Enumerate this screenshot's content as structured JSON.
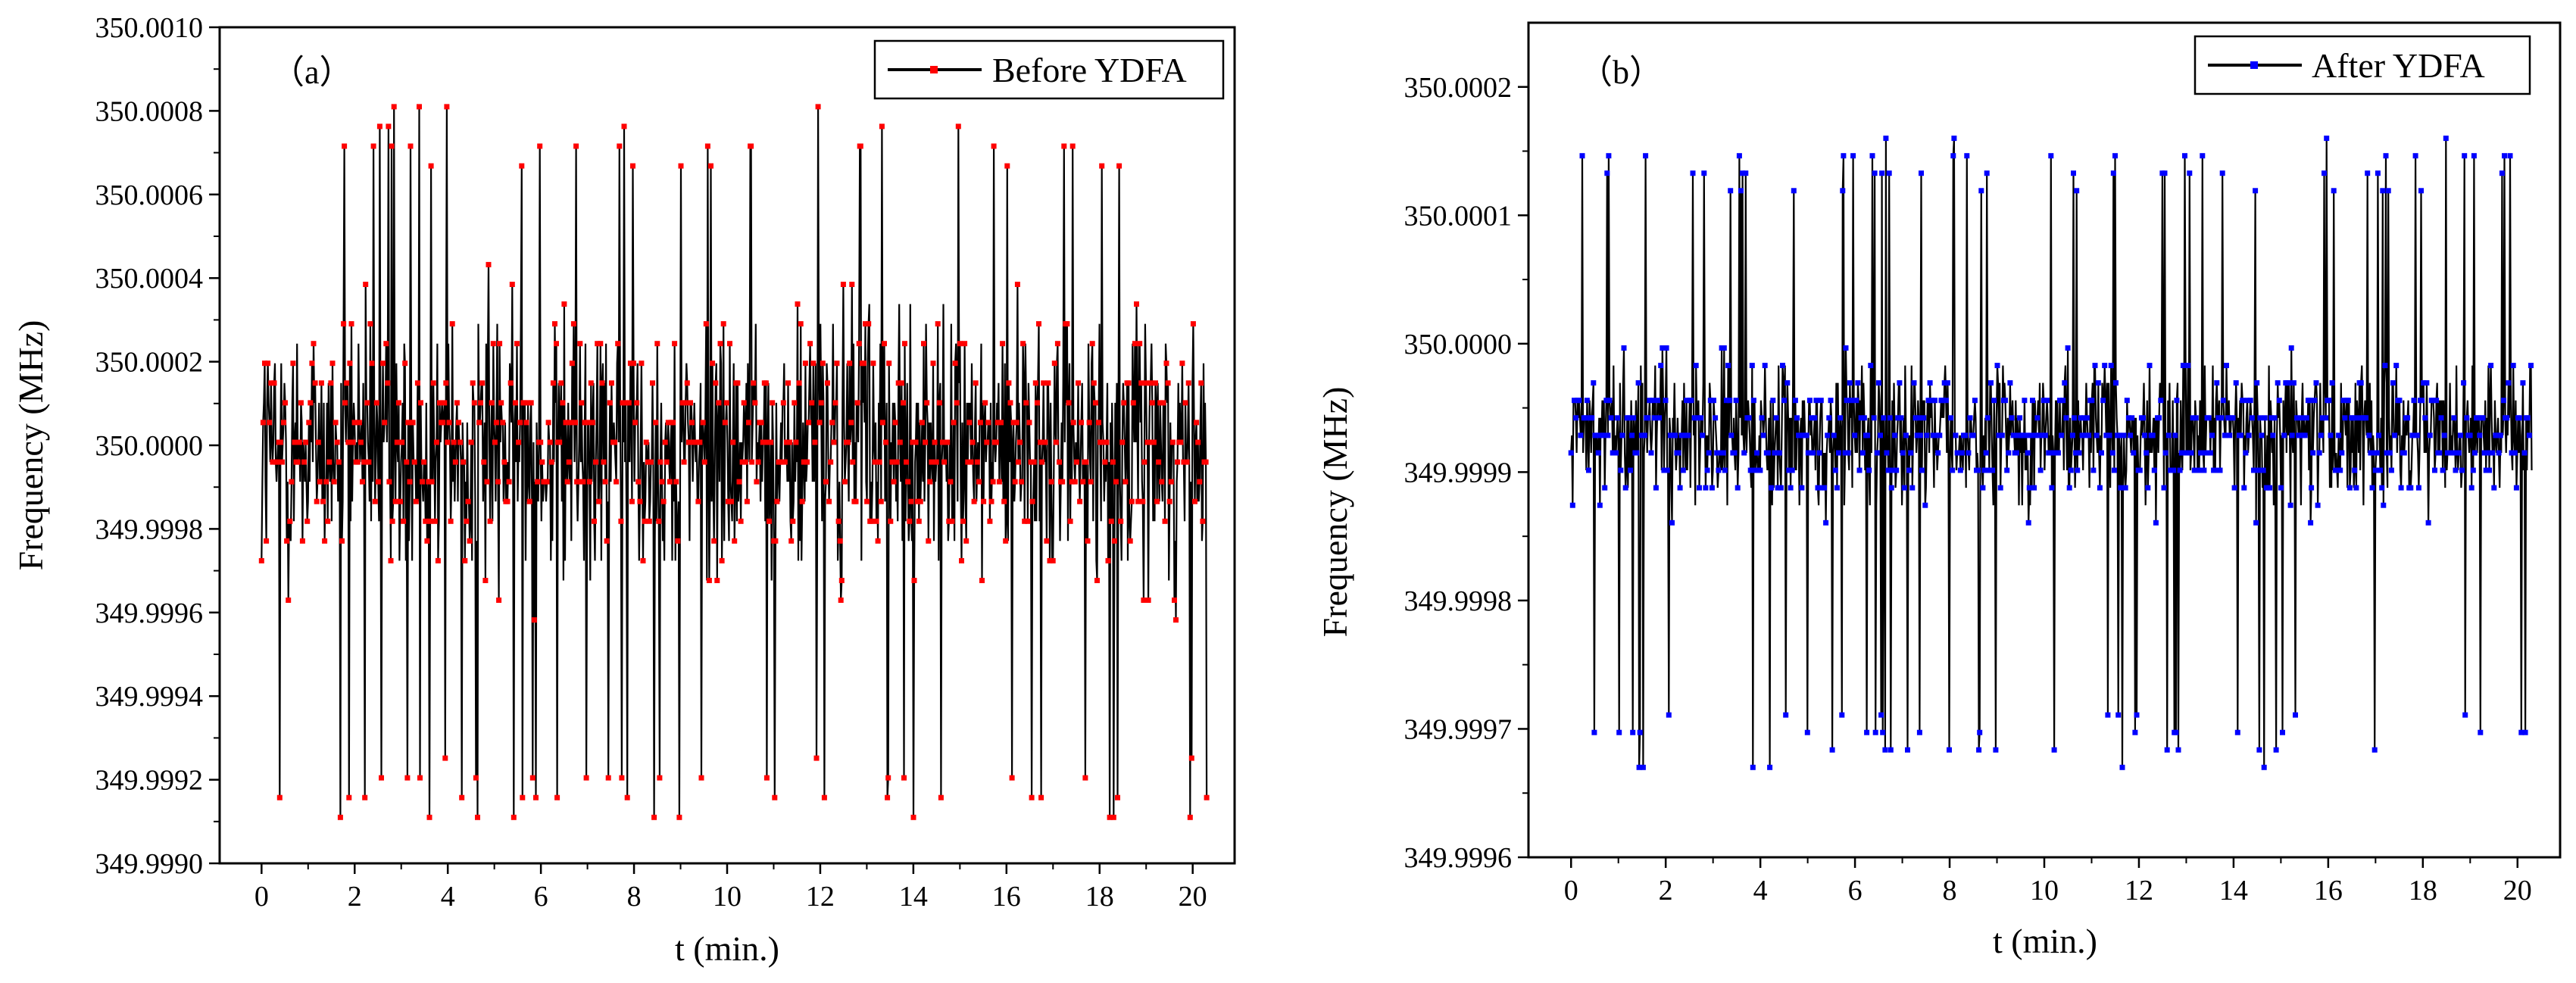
{
  "chart_data": [
    {
      "type": "line",
      "panel_label": "（a）",
      "series": [
        {
          "name": "Before YDFA",
          "line_color": "#000000",
          "marker_color": "#ff0000",
          "center": 350.0,
          "noise_typical": 0.00034,
          "max_value": 350.00081,
          "min_value": 349.99911,
          "n_points": 1200
        }
      ],
      "xlabel": "t (min.)",
      "ylabel": "Frequency (MHz)",
      "xlim": [
        -0.9,
        20.9
      ],
      "ylim": [
        349.999,
        350.001
      ],
      "xticks": [
        0,
        2,
        4,
        6,
        8,
        10,
        12,
        14,
        16,
        18,
        20
      ],
      "xtick_labels": [
        "0",
        "2",
        "4",
        "6",
        "8",
        "10",
        "12",
        "14",
        "16",
        "18",
        "20"
      ],
      "yticks": [
        349.999,
        349.9992,
        349.9994,
        349.9996,
        349.9998,
        350.0,
        350.0002,
        350.0004,
        350.0006,
        350.0008,
        350.001
      ],
      "ytick_labels": [
        "349.9990",
        "349.9992",
        "349.9994",
        "349.9996",
        "349.9998",
        "350.0000",
        "350.0002",
        "350.0004",
        "350.0006",
        "350.0008",
        "350.0010"
      ],
      "legend": "top-right",
      "grid": false
    },
    {
      "type": "line",
      "panel_label": "（b）",
      "series": [
        {
          "name": "After YDFA",
          "line_color": "#000000",
          "marker_color": "#0000ff",
          "center": 349.99993,
          "noise_typical": 6e-05,
          "max_value": 350.00016,
          "min_value": 349.99967,
          "n_points": 1200
        }
      ],
      "xlabel": "t (min.)",
      "ylabel": "Frequency (MHz)",
      "xlim": [
        -0.9,
        20.9
      ],
      "ylim": [
        349.9996,
        350.00025
      ],
      "xticks": [
        0,
        2,
        4,
        6,
        8,
        10,
        12,
        14,
        16,
        18,
        20
      ],
      "xtick_labels": [
        "0",
        "2",
        "4",
        "6",
        "8",
        "10",
        "12",
        "14",
        "16",
        "18",
        "20"
      ],
      "yticks": [
        349.9996,
        349.9997,
        349.9998,
        349.9999,
        350.0,
        350.0001,
        350.0002
      ],
      "ytick_labels": [
        "349.9996",
        "349.9997",
        "349.9998",
        "349.9999",
        "350.0000",
        "350.0001",
        "350.0002"
      ],
      "legend": "top-right",
      "grid": false
    }
  ]
}
